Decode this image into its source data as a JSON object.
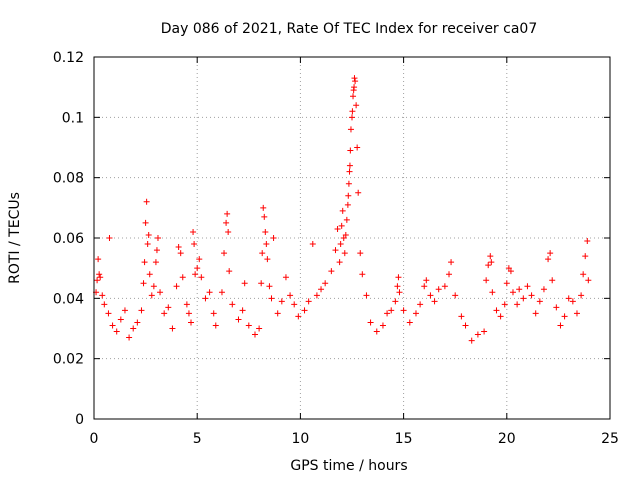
{
  "chart_data": {
    "type": "scatter",
    "title": "Day 086 of 2021, Rate Of TEC Index for receiver ca07",
    "xlabel": "GPS time / hours",
    "ylabel": "ROTI / TECUs",
    "xlim": [
      0,
      25
    ],
    "ylim": [
      0,
      0.12
    ],
    "xticks": [
      0,
      5,
      10,
      15,
      20,
      25
    ],
    "xtick_labels": [
      "0",
      "5",
      "10",
      "15",
      "20",
      "25"
    ],
    "yticks": [
      0,
      0.02,
      0.04,
      0.06,
      0.08,
      0.1,
      0.12
    ],
    "ytick_labels": [
      "0",
      "0.02",
      "0.04",
      "0.06",
      "0.08",
      "0.1",
      "0.12"
    ],
    "grid": true,
    "marker": "+",
    "series": [
      {
        "name": "ROTI",
        "color": "#ff0000",
        "points": [
          [
            0.1,
            0.042
          ],
          [
            0.15,
            0.046
          ],
          [
            0.25,
            0.048
          ],
          [
            0.2,
            0.053
          ],
          [
            0.3,
            0.047
          ],
          [
            0.4,
            0.041
          ],
          [
            0.5,
            0.038
          ],
          [
            0.7,
            0.035
          ],
          [
            0.9,
            0.031
          ],
          [
            0.75,
            0.06
          ],
          [
            1.1,
            0.029
          ],
          [
            1.3,
            0.033
          ],
          [
            1.5,
            0.036
          ],
          [
            1.7,
            0.027
          ],
          [
            1.9,
            0.03
          ],
          [
            2.1,
            0.032
          ],
          [
            2.3,
            0.036
          ],
          [
            2.4,
            0.045
          ],
          [
            2.45,
            0.052
          ],
          [
            2.5,
            0.065
          ],
          [
            2.55,
            0.072
          ],
          [
            2.6,
            0.058
          ],
          [
            2.65,
            0.061
          ],
          [
            2.7,
            0.048
          ],
          [
            2.8,
            0.041
          ],
          [
            2.9,
            0.044
          ],
          [
            3.0,
            0.052
          ],
          [
            3.05,
            0.056
          ],
          [
            3.1,
            0.06
          ],
          [
            3.2,
            0.042
          ],
          [
            3.4,
            0.035
          ],
          [
            3.6,
            0.037
          ],
          [
            3.8,
            0.03
          ],
          [
            4.0,
            0.044
          ],
          [
            4.1,
            0.057
          ],
          [
            4.2,
            0.055
          ],
          [
            4.3,
            0.047
          ],
          [
            4.5,
            0.038
          ],
          [
            4.6,
            0.035
          ],
          [
            4.7,
            0.032
          ],
          [
            4.8,
            0.062
          ],
          [
            4.85,
            0.058
          ],
          [
            4.9,
            0.048
          ],
          [
            5.0,
            0.05
          ],
          [
            5.1,
            0.053
          ],
          [
            5.2,
            0.047
          ],
          [
            5.4,
            0.04
          ],
          [
            5.6,
            0.042
          ],
          [
            5.8,
            0.035
          ],
          [
            5.9,
            0.031
          ],
          [
            6.2,
            0.042
          ],
          [
            6.3,
            0.055
          ],
          [
            6.4,
            0.065
          ],
          [
            6.45,
            0.068
          ],
          [
            6.5,
            0.062
          ],
          [
            6.55,
            0.049
          ],
          [
            6.7,
            0.038
          ],
          [
            7.0,
            0.033
          ],
          [
            7.2,
            0.036
          ],
          [
            7.3,
            0.045
          ],
          [
            7.5,
            0.031
          ],
          [
            7.8,
            0.028
          ],
          [
            8.0,
            0.03
          ],
          [
            8.1,
            0.045
          ],
          [
            8.15,
            0.055
          ],
          [
            8.2,
            0.07
          ],
          [
            8.25,
            0.067
          ],
          [
            8.3,
            0.062
          ],
          [
            8.35,
            0.058
          ],
          [
            8.4,
            0.053
          ],
          [
            8.5,
            0.044
          ],
          [
            8.6,
            0.04
          ],
          [
            8.7,
            0.06
          ],
          [
            8.9,
            0.035
          ],
          [
            9.1,
            0.039
          ],
          [
            9.3,
            0.047
          ],
          [
            9.5,
            0.041
          ],
          [
            9.7,
            0.038
          ],
          [
            9.9,
            0.034
          ],
          [
            10.2,
            0.036
          ],
          [
            10.4,
            0.039
          ],
          [
            10.6,
            0.058
          ],
          [
            10.8,
            0.041
          ],
          [
            11.0,
            0.043
          ],
          [
            11.2,
            0.045
          ],
          [
            11.5,
            0.049
          ],
          [
            11.7,
            0.056
          ],
          [
            11.8,
            0.063
          ],
          [
            11.9,
            0.052
          ],
          [
            11.95,
            0.058
          ],
          [
            12.0,
            0.064
          ],
          [
            12.05,
            0.069
          ],
          [
            12.1,
            0.06
          ],
          [
            12.15,
            0.055
          ],
          [
            12.2,
            0.061
          ],
          [
            12.25,
            0.066
          ],
          [
            12.3,
            0.071
          ],
          [
            12.32,
            0.074
          ],
          [
            12.35,
            0.078
          ],
          [
            12.38,
            0.082
          ],
          [
            12.4,
            0.084
          ],
          [
            12.42,
            0.089
          ],
          [
            12.45,
            0.096
          ],
          [
            12.5,
            0.1
          ],
          [
            12.52,
            0.102
          ],
          [
            12.55,
            0.107
          ],
          [
            12.58,
            0.109
          ],
          [
            12.6,
            0.11
          ],
          [
            12.62,
            0.113
          ],
          [
            12.65,
            0.112
          ],
          [
            12.7,
            0.104
          ],
          [
            12.75,
            0.09
          ],
          [
            12.8,
            0.075
          ],
          [
            12.9,
            0.055
          ],
          [
            13.0,
            0.048
          ],
          [
            13.2,
            0.041
          ],
          [
            13.4,
            0.032
          ],
          [
            13.7,
            0.029
          ],
          [
            14.0,
            0.031
          ],
          [
            14.2,
            0.035
          ],
          [
            14.4,
            0.036
          ],
          [
            14.6,
            0.039
          ],
          [
            14.7,
            0.044
          ],
          [
            14.75,
            0.047
          ],
          [
            14.8,
            0.042
          ],
          [
            15.0,
            0.036
          ],
          [
            15.3,
            0.032
          ],
          [
            15.6,
            0.035
          ],
          [
            15.8,
            0.038
          ],
          [
            16.0,
            0.044
          ],
          [
            16.1,
            0.046
          ],
          [
            16.3,
            0.041
          ],
          [
            16.5,
            0.039
          ],
          [
            16.7,
            0.043
          ],
          [
            17.0,
            0.044
          ],
          [
            17.2,
            0.048
          ],
          [
            17.3,
            0.052
          ],
          [
            17.5,
            0.041
          ],
          [
            17.8,
            0.034
          ],
          [
            18.0,
            0.031
          ],
          [
            18.3,
            0.026
          ],
          [
            18.6,
            0.028
          ],
          [
            18.9,
            0.029
          ],
          [
            19.0,
            0.046
          ],
          [
            19.1,
            0.051
          ],
          [
            19.2,
            0.054
          ],
          [
            19.25,
            0.052
          ],
          [
            19.3,
            0.042
          ],
          [
            19.5,
            0.036
          ],
          [
            19.7,
            0.034
          ],
          [
            19.9,
            0.038
          ],
          [
            20.0,
            0.045
          ],
          [
            20.1,
            0.05
          ],
          [
            20.2,
            0.049
          ],
          [
            20.3,
            0.042
          ],
          [
            20.5,
            0.038
          ],
          [
            20.6,
            0.043
          ],
          [
            20.8,
            0.04
          ],
          [
            21.0,
            0.044
          ],
          [
            21.2,
            0.041
          ],
          [
            21.4,
            0.035
          ],
          [
            21.6,
            0.039
          ],
          [
            21.8,
            0.043
          ],
          [
            22.0,
            0.053
          ],
          [
            22.1,
            0.055
          ],
          [
            22.2,
            0.046
          ],
          [
            22.4,
            0.037
          ],
          [
            22.6,
            0.031
          ],
          [
            22.8,
            0.034
          ],
          [
            23.0,
            0.04
          ],
          [
            23.2,
            0.039
          ],
          [
            23.4,
            0.035
          ],
          [
            23.6,
            0.041
          ],
          [
            23.7,
            0.048
          ],
          [
            23.8,
            0.054
          ],
          [
            23.9,
            0.059
          ],
          [
            23.95,
            0.046
          ]
        ]
      }
    ]
  }
}
